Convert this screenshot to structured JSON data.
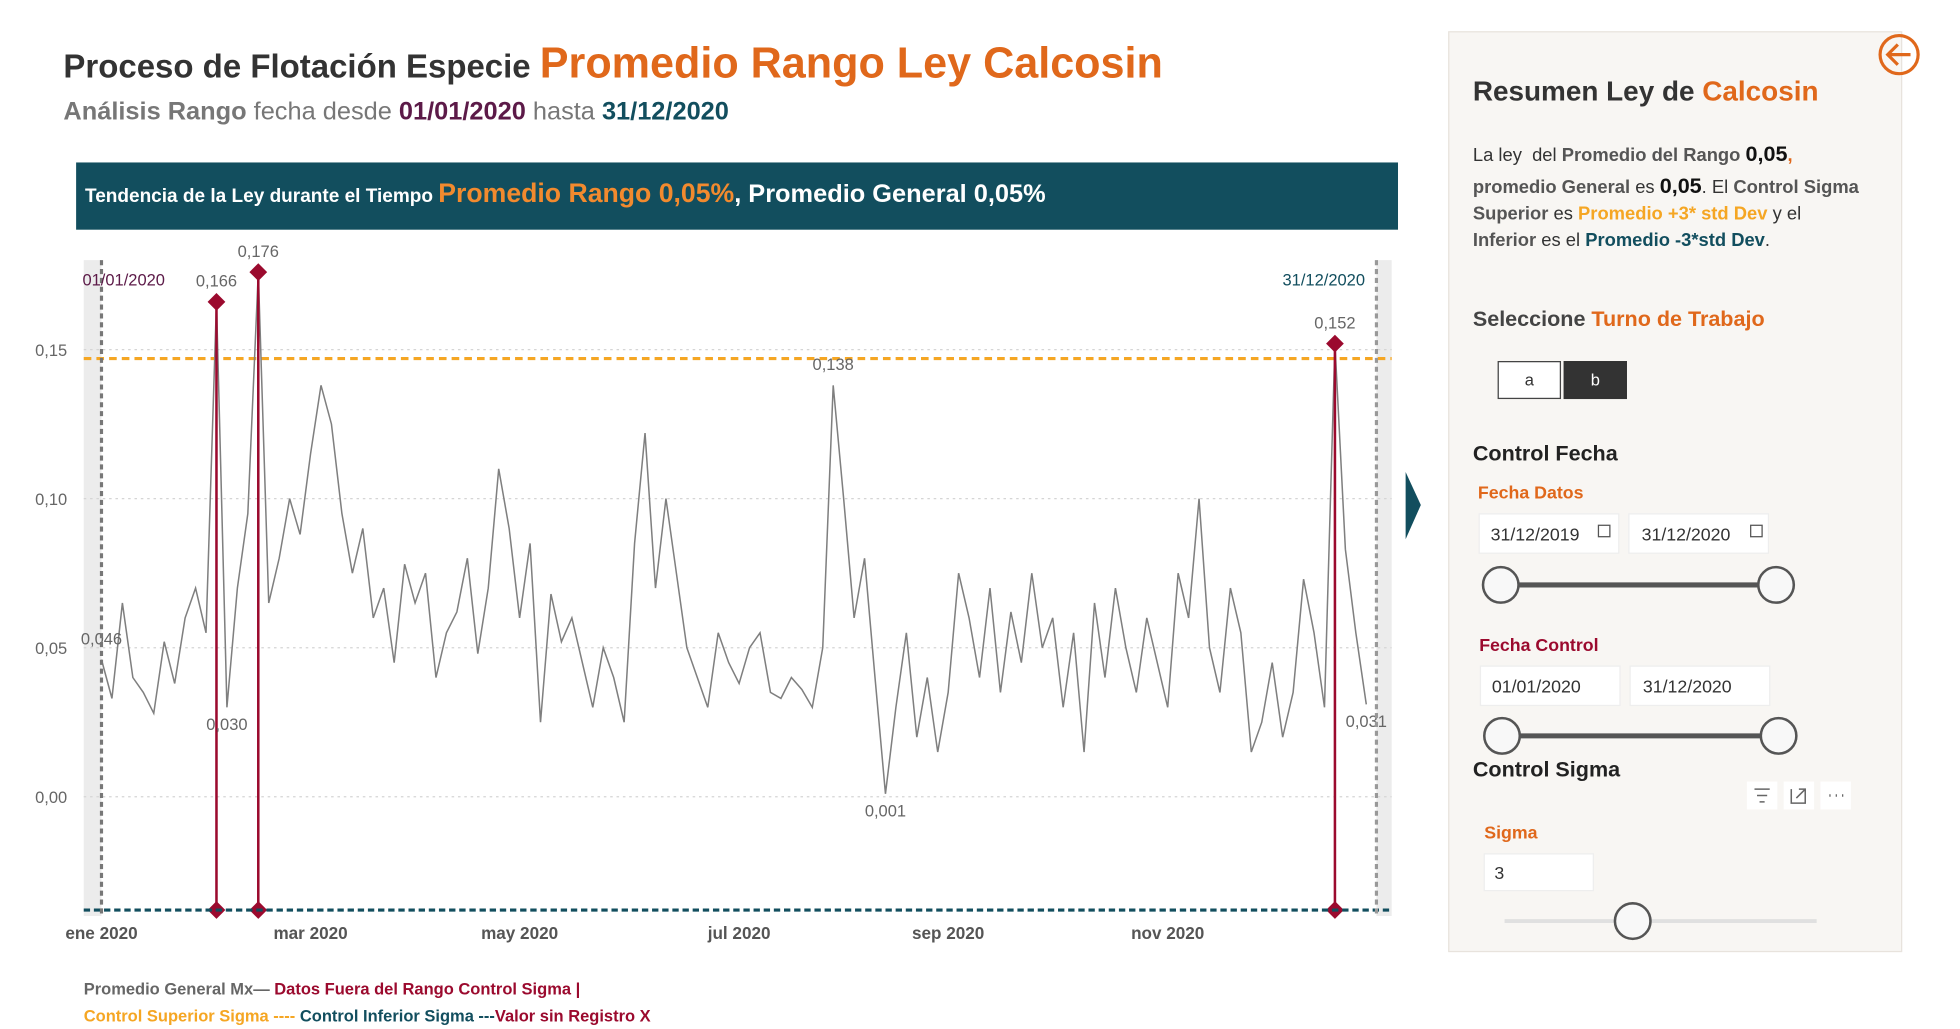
{
  "header": {
    "title": [
      "Proceso de Flotación Especie ",
      "Promedio Rango Ley Calcosin"
    ],
    "subtitle": [
      "Análisis Rango",
      " fecha desde ",
      "01/01/2020",
      " hasta ",
      "31/12/2020"
    ],
    "banner": [
      "Tendencia de la Ley durante el Tiempo ",
      "Promedio Rango 0,05%",
      ", Promedio General ",
      "0,05%"
    ]
  },
  "chart_data": {
    "type": "line",
    "color": "#7f7f7f",
    "categories": [
      "ene 2020",
      null,
      null,
      null,
      null,
      null,
      null,
      null,
      null,
      null,
      null,
      null,
      null,
      null,
      null,
      null,
      null,
      null,
      null,
      null,
      "mar 2020",
      null,
      null,
      null,
      null,
      null,
      null,
      null,
      null,
      null,
      null,
      null,
      null,
      null,
      null,
      null,
      null,
      null,
      null,
      null,
      "may 2020",
      null,
      null,
      null,
      null,
      null,
      null,
      null,
      null,
      null,
      null,
      null,
      null,
      null,
      null,
      null,
      null,
      null,
      null,
      null,
      null,
      "jul 2020",
      null,
      null,
      null,
      null,
      null,
      null,
      null,
      null,
      null,
      null,
      null,
      null,
      null,
      null,
      null,
      null,
      null,
      null,
      null,
      "sep 2020",
      null,
      null,
      null,
      null,
      null,
      null,
      null,
      null,
      null,
      null,
      null,
      null,
      null,
      null,
      null,
      null,
      null,
      null,
      null,
      null,
      "nov 2020",
      null,
      null,
      null,
      null,
      null,
      null,
      null,
      null,
      null,
      null,
      null,
      null,
      null,
      null,
      null,
      null,
      null,
      null,
      null
    ],
    "values": [
      0.046,
      0.033,
      0.065,
      0.04,
      0.035,
      0.028,
      0.052,
      0.038,
      0.06,
      0.07,
      0.055,
      0.166,
      0.03,
      0.07,
      0.095,
      0.176,
      0.065,
      0.08,
      0.1,
      0.088,
      0.115,
      0.138,
      0.125,
      0.095,
      0.075,
      0.09,
      0.06,
      0.07,
      0.045,
      0.078,
      0.065,
      0.075,
      0.04,
      0.055,
      0.062,
      0.08,
      0.048,
      0.07,
      0.11,
      0.09,
      0.06,
      0.085,
      0.025,
      0.068,
      0.052,
      0.06,
      0.045,
      0.03,
      0.05,
      0.04,
      0.025,
      0.085,
      0.122,
      0.07,
      0.1,
      0.075,
      0.05,
      0.04,
      0.03,
      0.055,
      0.045,
      0.038,
      0.05,
      0.055,
      0.035,
      0.033,
      0.04,
      0.036,
      0.03,
      0.05,
      0.138,
      0.1,
      0.06,
      0.08,
      0.04,
      0.001,
      0.03,
      0.055,
      0.02,
      0.04,
      0.015,
      0.035,
      0.075,
      0.06,
      0.04,
      0.07,
      0.035,
      0.062,
      0.045,
      0.075,
      0.05,
      0.06,
      0.03,
      0.055,
      0.015,
      0.065,
      0.04,
      0.07,
      0.05,
      0.035,
      0.06,
      0.045,
      0.03,
      0.075,
      0.06,
      0.1,
      0.05,
      0.035,
      0.07,
      0.055,
      0.015,
      0.025,
      0.045,
      0.02,
      0.035,
      0.073,
      0.055,
      0.03,
      0.152,
      0.083,
      0.055,
      0.031
    ],
    "value_labels": [
      "0,046",
      null,
      null,
      null,
      null,
      null,
      null,
      null,
      null,
      null,
      null,
      "0,166",
      "0,030",
      null,
      null,
      "0,176",
      null,
      null,
      null,
      null,
      null,
      null,
      null,
      null,
      null,
      null,
      null,
      null,
      null,
      null,
      null,
      null,
      null,
      null,
      null,
      null,
      null,
      null,
      null,
      null,
      null,
      null,
      null,
      null,
      null,
      null,
      null,
      null,
      null,
      null,
      null,
      null,
      null,
      null,
      null,
      null,
      null,
      null,
      null,
      null,
      null,
      null,
      null,
      null,
      null,
      null,
      null,
      null,
      null,
      null,
      "0,138",
      null,
      null,
      null,
      null,
      "0,001",
      null,
      null,
      null,
      null,
      null,
      null,
      null,
      null,
      null,
      null,
      null,
      null,
      null,
      null,
      null,
      null,
      null,
      null,
      null,
      null,
      null,
      null,
      null,
      null,
      null,
      null,
      null,
      null,
      null,
      null,
      null,
      null,
      null,
      null,
      null,
      null,
      null,
      null,
      null,
      null,
      null,
      null,
      "0,152",
      null,
      null,
      "0,031"
    ],
    "ylim": [
      -0.04,
      0.18
    ],
    "yticks": [
      {
        "value": 0,
        "label": "0,00"
      },
      {
        "value": 0.05,
        "label": "0,05"
      },
      {
        "value": 0.1,
        "label": "0,10"
      },
      {
        "value": 0.15,
        "label": "0,15"
      }
    ],
    "grid": true,
    "upper_control": 0.147,
    "lower_control": -0.038,
    "outlier_color": "#9b0a2e",
    "range_start_label": "01/01/2020",
    "range_end_label": "31/12/2020",
    "legend": [
      "Promedio General Mx—",
      " Datos Fuera del Rango Control Sigma |",
      "Control Superior Sigma ----",
      " Control Inferior Sigma ---",
      "Valor sin Registro X"
    ]
  },
  "panel": {
    "title": [
      "Resumen Ley de ",
      "Calcosin"
    ],
    "summary": [
      [
        "La ley  del ",
        "Promedio del Rango",
        " ",
        "0,05",
        ","
      ],
      [
        "promedio General",
        " es ",
        "0,05",
        ". El ",
        "Control Sigma"
      ],
      [
        "Superior",
        " es ",
        "Promedio +3* std Dev",
        " y el"
      ],
      [
        "Inferior",
        " es el ",
        "Promedio -3*std Dev",
        "."
      ]
    ],
    "select": [
      "Seleccione ",
      "Turno de Trabajo"
    ],
    "buttons": [
      "a",
      "b"
    ],
    "control_fecha": "Control Fecha",
    "fecha_datos": {
      "label": "Fecha Datos",
      "from": "31/12/2019",
      "to": "31/12/2020"
    },
    "fecha_control": {
      "label": "Fecha Control",
      "from": "01/01/2020",
      "to": "31/12/2020"
    },
    "control_sigma": "Control Sigma",
    "sigma": {
      "label": "Sigma",
      "value": "3"
    }
  }
}
